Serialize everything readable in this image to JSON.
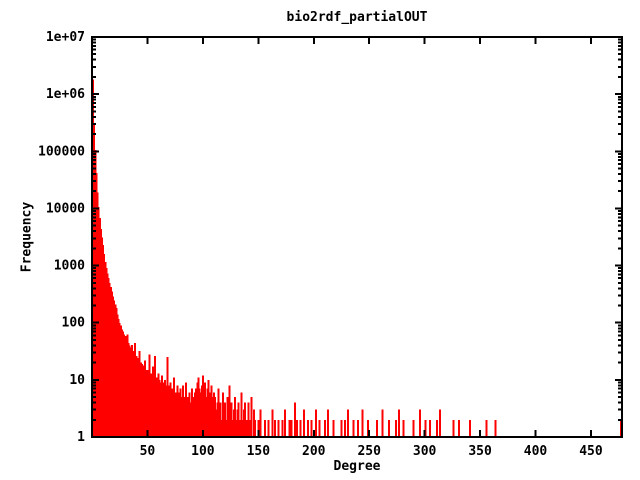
{
  "chart_data": {
    "type": "bar",
    "title": "bio2rdf_partialOUT",
    "xlabel": "Degree",
    "ylabel": "Frequency",
    "y_scale": "log10",
    "xlim": [
      0,
      478
    ],
    "ylim": [
      1,
      10000000
    ],
    "grid": false,
    "legend": "none",
    "bar_color": "#ff0000",
    "axis_color": "#000000",
    "background": "#ffffff",
    "x_ticks": [
      {
        "v": 50,
        "label": "50"
      },
      {
        "v": 100,
        "label": "100"
      },
      {
        "v": 150,
        "label": "150"
      },
      {
        "v": 200,
        "label": "200"
      },
      {
        "v": 250,
        "label": "250"
      },
      {
        "v": 300,
        "label": "300"
      },
      {
        "v": 350,
        "label": "350"
      },
      {
        "v": 400,
        "label": "400"
      },
      {
        "v": 450,
        "label": "450"
      }
    ],
    "y_ticks": [
      {
        "v": 1,
        "label": "1"
      },
      {
        "v": 10,
        "label": "10"
      },
      {
        "v": 100,
        "label": "100"
      },
      {
        "v": 1000,
        "label": "1000"
      },
      {
        "v": 10000,
        "label": "10000"
      },
      {
        "v": 100000,
        "label": "100000"
      },
      {
        "v": 1000000,
        "label": "1e+06"
      },
      {
        "v": 10000000,
        "label": "1e+07"
      }
    ],
    "y_minor_ticks": true,
    "points": [
      [
        1,
        1800000
      ],
      [
        2,
        300000
      ],
      [
        3,
        105000
      ],
      [
        4,
        42000
      ],
      [
        5,
        19000
      ],
      [
        6,
        10500
      ],
      [
        7,
        6800
      ],
      [
        8,
        4400
      ],
      [
        9,
        3100
      ],
      [
        10,
        2300
      ],
      [
        11,
        1600
      ],
      [
        12,
        1150
      ],
      [
        13,
        900
      ],
      [
        14,
        720
      ],
      [
        15,
        600
      ],
      [
        16,
        500
      ],
      [
        17,
        420
      ],
      [
        18,
        350
      ],
      [
        19,
        290
      ],
      [
        20,
        245
      ],
      [
        21,
        210
      ],
      [
        22,
        180
      ],
      [
        23,
        140
      ],
      [
        24,
        115
      ],
      [
        25,
        98
      ],
      [
        26,
        90
      ],
      [
        27,
        76
      ],
      [
        28,
        70
      ],
      [
        29,
        62
      ],
      [
        30,
        58
      ],
      [
        31,
        50
      ],
      [
        32,
        62
      ],
      [
        33,
        44
      ],
      [
        34,
        40
      ],
      [
        35,
        37
      ],
      [
        36,
        41
      ],
      [
        37,
        32
      ],
      [
        38,
        29
      ],
      [
        39,
        44
      ],
      [
        40,
        26
      ],
      [
        41,
        24
      ],
      [
        42,
        22
      ],
      [
        43,
        32
      ],
      [
        44,
        20
      ],
      [
        45,
        19
      ],
      [
        46,
        18
      ],
      [
        47,
        17
      ],
      [
        48,
        22
      ],
      [
        49,
        15
      ],
      [
        50,
        15
      ],
      [
        51,
        14
      ],
      [
        52,
        28
      ],
      [
        53,
        13
      ],
      [
        54,
        12
      ],
      [
        55,
        17
      ],
      [
        56,
        12
      ],
      [
        57,
        26
      ],
      [
        58,
        11
      ],
      [
        59,
        10
      ],
      [
        60,
        13
      ],
      [
        61,
        10
      ],
      [
        62,
        9
      ],
      [
        63,
        12
      ],
      [
        64,
        9
      ],
      [
        65,
        8
      ],
      [
        66,
        10
      ],
      [
        67,
        8
      ],
      [
        68,
        25
      ],
      [
        69,
        8
      ],
      [
        70,
        7
      ],
      [
        71,
        9
      ],
      [
        72,
        7
      ],
      [
        73,
        7
      ],
      [
        74,
        11
      ],
      [
        75,
        6
      ],
      [
        76,
        6
      ],
      [
        77,
        8
      ],
      [
        78,
        6
      ],
      [
        79,
        6
      ],
      [
        80,
        7
      ],
      [
        81,
        5
      ],
      [
        82,
        8
      ],
      [
        83,
        5
      ],
      [
        84,
        5
      ],
      [
        85,
        9
      ],
      [
        86,
        5
      ],
      [
        87,
        5
      ],
      [
        88,
        6
      ],
      [
        89,
        4
      ],
      [
        90,
        7
      ],
      [
        91,
        4
      ],
      [
        92,
        5
      ],
      [
        93,
        6
      ],
      [
        94,
        7
      ],
      [
        95,
        9
      ],
      [
        96,
        11
      ],
      [
        97,
        7
      ],
      [
        98,
        6
      ],
      [
        99,
        8
      ],
      [
        100,
        12
      ],
      [
        101,
        6
      ],
      [
        102,
        9
      ],
      [
        103,
        5
      ],
      [
        104,
        7
      ],
      [
        105,
        10
      ],
      [
        106,
        5
      ],
      [
        107,
        6
      ],
      [
        108,
        8
      ],
      [
        109,
        5
      ],
      [
        110,
        6
      ],
      [
        111,
        5
      ],
      [
        112,
        3
      ],
      [
        113,
        4
      ],
      [
        114,
        7
      ],
      [
        115,
        3
      ],
      [
        116,
        4
      ],
      [
        117,
        2
      ],
      [
        118,
        6
      ],
      [
        119,
        3
      ],
      [
        120,
        4
      ],
      [
        121,
        2
      ],
      [
        122,
        5
      ],
      [
        123,
        3
      ],
      [
        124,
        8
      ],
      [
        125,
        2
      ],
      [
        126,
        4
      ],
      [
        127,
        2
      ],
      [
        128,
        3
      ],
      [
        129,
        5
      ],
      [
        130,
        2
      ],
      [
        131,
        3
      ],
      [
        132,
        4
      ],
      [
        133,
        2
      ],
      [
        134,
        2
      ],
      [
        135,
        6
      ],
      [
        136,
        2
      ],
      [
        137,
        3
      ],
      [
        138,
        4
      ],
      [
        139,
        1
      ],
      [
        140,
        2
      ],
      [
        141,
        4
      ],
      [
        142,
        2
      ],
      [
        143,
        2
      ],
      [
        144,
        5
      ],
      [
        145,
        1
      ],
      [
        146,
        3
      ],
      [
        147,
        2
      ],
      [
        148,
        1
      ],
      [
        150,
        2
      ],
      [
        152,
        3
      ],
      [
        154,
        1
      ],
      [
        156,
        2
      ],
      [
        158,
        1
      ],
      [
        159,
        2
      ],
      [
        161,
        1
      ],
      [
        163,
        3
      ],
      [
        165,
        2
      ],
      [
        167,
        1
      ],
      [
        168,
        2
      ],
      [
        170,
        1
      ],
      [
        172,
        2
      ],
      [
        174,
        3
      ],
      [
        176,
        1
      ],
      [
        178,
        2
      ],
      [
        180,
        2
      ],
      [
        183,
        4
      ],
      [
        185,
        2
      ],
      [
        188,
        2
      ],
      [
        191,
        3
      ],
      [
        195,
        2
      ],
      [
        198,
        2
      ],
      [
        202,
        3
      ],
      [
        205,
        2
      ],
      [
        210,
        2
      ],
      [
        213,
        3
      ],
      [
        218,
        2
      ],
      [
        221,
        1
      ],
      [
        225,
        2
      ],
      [
        228,
        2
      ],
      [
        231,
        3
      ],
      [
        236,
        2
      ],
      [
        240,
        2
      ],
      [
        244,
        3
      ],
      [
        249,
        2
      ],
      [
        253,
        1
      ],
      [
        257,
        2
      ],
      [
        262,
        3
      ],
      [
        268,
        2
      ],
      [
        274,
        2
      ],
      [
        277,
        3
      ],
      [
        281,
        2
      ],
      [
        285,
        1
      ],
      [
        290,
        2
      ],
      [
        296,
        3
      ],
      [
        301,
        2
      ],
      [
        305,
        2
      ],
      [
        311,
        2
      ],
      [
        314,
        3
      ],
      [
        322,
        1
      ],
      [
        326,
        2
      ],
      [
        331,
        2
      ],
      [
        336,
        1
      ],
      [
        341,
        2
      ],
      [
        356,
        2
      ],
      [
        364,
        2
      ],
      [
        477,
        2
      ]
    ]
  }
}
